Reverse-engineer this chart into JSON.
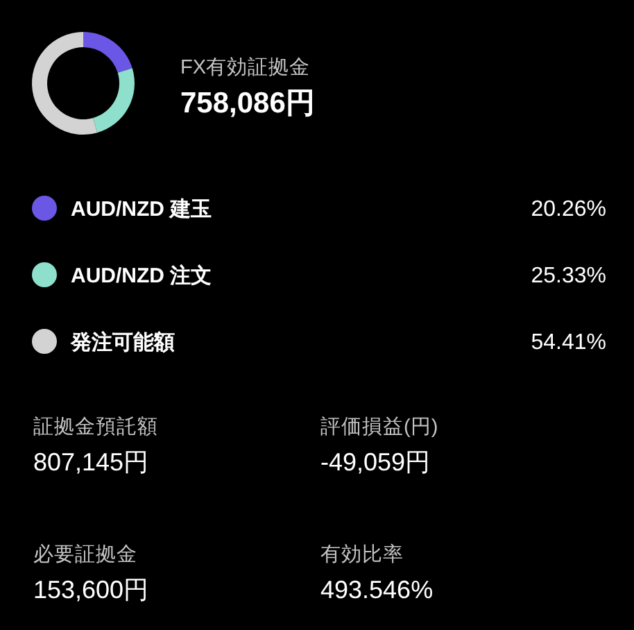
{
  "chart_data": [
    {
      "type": "donut",
      "title": "FX有効証拠金",
      "subtitle": "758,086円",
      "categories": [
        "AUD/NZD 建玉",
        "AUD/NZD 注文",
        "発注可能額"
      ],
      "values": [
        20.26,
        25.33,
        54.41
      ],
      "colors": [
        "#6b57e6",
        "#8ee0cc",
        "#d3d3d3"
      ],
      "value_labels": [
        "20.26%",
        "25.33%",
        "54.41%"
      ],
      "legend": "bottom"
    },
    {
      "type": "other",
      "annotations": [
        "証拠金預託額",
        "807,145円",
        "評価損益(円)",
        "-49,059円",
        "必要証拠金",
        "153,600円",
        "有効比率",
        "493.546%"
      ]
    }
  ]
}
